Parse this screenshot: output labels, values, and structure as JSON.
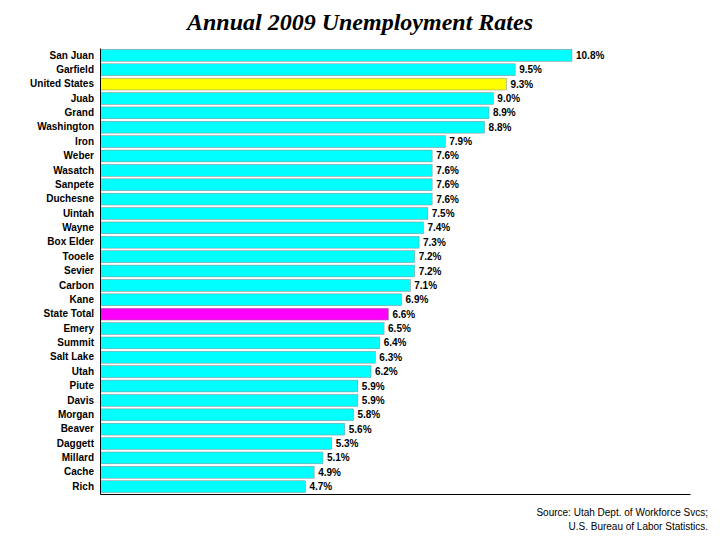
{
  "chart_data": {
    "type": "bar",
    "orientation": "horizontal",
    "title": "Annual 2009 Unemployment Rates",
    "categories": [
      "San Juan",
      "Garfield",
      "United States",
      "Juab",
      "Grand",
      "Washington",
      "Iron",
      "Weber",
      "Wasatch",
      "Sanpete",
      "Duchesne",
      "Uintah",
      "Wayne",
      "Box Elder",
      "Tooele",
      "Sevier",
      "Carbon",
      "Kane",
      "State Total",
      "Emery",
      "Summit",
      "Salt Lake",
      "Utah",
      "Piute",
      "Davis",
      "Morgan",
      "Beaver",
      "Daggett",
      "Millard",
      "Cache",
      "Rich"
    ],
    "values": [
      10.8,
      9.5,
      9.3,
      9.0,
      8.9,
      8.8,
      7.9,
      7.6,
      7.6,
      7.6,
      7.6,
      7.5,
      7.4,
      7.3,
      7.2,
      7.2,
      7.1,
      6.9,
      6.6,
      6.5,
      6.4,
      6.3,
      6.2,
      5.9,
      5.9,
      5.8,
      5.6,
      5.3,
      5.1,
      4.9,
      4.7
    ],
    "value_labels": [
      "10.8%",
      "9.5%",
      "9.3%",
      "9.0%",
      "8.9%",
      "8.8%",
      "7.9%",
      "7.6%",
      "7.6%",
      "7.6%",
      "7.6%",
      "7.5%",
      "7.4%",
      "7.3%",
      "7.2%",
      "7.2%",
      "7.1%",
      "6.9%",
      "6.6%",
      "6.5%",
      "6.4%",
      "6.3%",
      "6.2%",
      "5.9%",
      "5.9%",
      "5.8%",
      "5.6%",
      "5.3%",
      "5.1%",
      "4.9%",
      "4.7%"
    ],
    "colors": [
      "#00FFFF",
      "#00FFFF",
      "#FFFF00",
      "#00FFFF",
      "#00FFFF",
      "#00FFFF",
      "#00FFFF",
      "#00FFFF",
      "#00FFFF",
      "#00FFFF",
      "#00FFFF",
      "#00FFFF",
      "#00FFFF",
      "#00FFFF",
      "#00FFFF",
      "#00FFFF",
      "#00FFFF",
      "#00FFFF",
      "#FF00FF",
      "#00FFFF",
      "#00FFFF",
      "#00FFFF",
      "#00FFFF",
      "#00FFFF",
      "#00FFFF",
      "#00FFFF",
      "#00FFFF",
      "#00FFFF",
      "#00FFFF",
      "#00FFFF",
      "#00FFFF"
    ],
    "xlim": [
      0,
      13.5
    ],
    "data_labels": true,
    "tick_labels": "y",
    "grid": false,
    "annotations": [
      "Source: Utah Dept. of Workforce Svcs;",
      "U.S. Bureau of Labor Statistics."
    ]
  }
}
